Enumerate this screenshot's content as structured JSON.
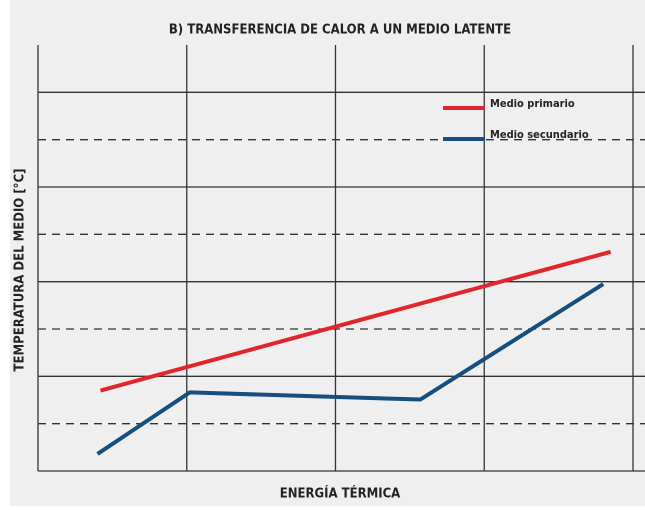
{
  "chart_data": {
    "type": "line",
    "title": "B) TRANSFERENCIA DE CALOR A UN MEDIO LATENTE",
    "xlabel": "ENERGÍA TÉRMICA",
    "ylabel": "TEMPERATURA DEL MEDIO [°C]",
    "series": [
      {
        "name": "Medio primario",
        "color": "#e0262c",
        "x": [
          0.42,
          3.85
        ],
        "values": [
          1.7,
          4.63
        ]
      },
      {
        "name": "Medio secundario",
        "color": "#144f80",
        "x": [
          0.4,
          1.02,
          2.57,
          3.8
        ],
        "values": [
          0.36,
          1.66,
          1.51,
          3.95
        ]
      }
    ],
    "xlim": [
      0,
      4
    ],
    "ylim": [
      0,
      9
    ],
    "xticks": [
      0,
      1,
      2,
      3,
      4
    ],
    "yticks": [
      0,
      2,
      4,
      6,
      8
    ],
    "minor_yticks": [
      1,
      3,
      5,
      7
    ],
    "grid": true,
    "legend": "upper right"
  }
}
